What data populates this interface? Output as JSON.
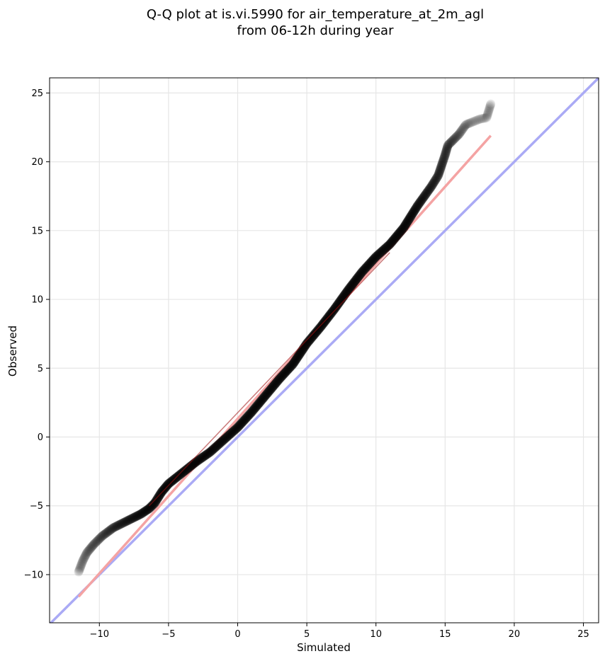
{
  "chart_data": {
    "type": "scatter",
    "title": "Q-Q plot at is.vi.5990 for air_temperature_at_2m_agl",
    "subtitle": "from 06-12h during year",
    "xlabel": "Simulated",
    "ylabel": "Observed",
    "xlim": [
      -13.6,
      26.1
    ],
    "ylim": [
      -13.5,
      26.1
    ],
    "xticks": [
      -10,
      -5,
      0,
      5,
      10,
      15,
      20,
      25
    ],
    "yticks": [
      -10,
      -5,
      0,
      5,
      10,
      15,
      20,
      25
    ],
    "xtick_labels": [
      "−10",
      "−5",
      "0",
      "5",
      "10",
      "15",
      "20",
      "25"
    ],
    "ytick_labels": [
      "−10",
      "−5",
      "0",
      "5",
      "10",
      "15",
      "20",
      "25"
    ],
    "grid": true,
    "quantile_curve": [
      [
        -11.5,
        -9.8
      ],
      [
        -11.2,
        -9.0
      ],
      [
        -10.9,
        -8.4
      ],
      [
        -10.4,
        -7.8
      ],
      [
        -9.8,
        -7.2
      ],
      [
        -9.0,
        -6.6
      ],
      [
        -8.0,
        -6.1
      ],
      [
        -7.0,
        -5.6
      ],
      [
        -6.4,
        -5.2
      ],
      [
        -6.0,
        -4.8
      ],
      [
        -5.5,
        -4.0
      ],
      [
        -5.0,
        -3.4
      ],
      [
        -4.0,
        -2.6
      ],
      [
        -3.0,
        -1.8
      ],
      [
        -2.0,
        -1.1
      ],
      [
        -1.0,
        -0.2
      ],
      [
        0.0,
        0.7
      ],
      [
        1.0,
        1.8
      ],
      [
        2.0,
        3.0
      ],
      [
        3.0,
        4.2
      ],
      [
        4.0,
        5.3
      ],
      [
        5.0,
        6.8
      ],
      [
        6.0,
        8.0
      ],
      [
        7.0,
        9.3
      ],
      [
        8.0,
        10.7
      ],
      [
        9.0,
        12.0
      ],
      [
        10.0,
        13.1
      ],
      [
        11.0,
        14.0
      ],
      [
        12.0,
        15.2
      ],
      [
        12.5,
        16.0
      ],
      [
        13.0,
        16.8
      ],
      [
        13.5,
        17.5
      ],
      [
        14.0,
        18.2
      ],
      [
        14.5,
        19.0
      ],
      [
        15.0,
        20.5
      ],
      [
        15.2,
        21.2
      ],
      [
        16.0,
        22.0
      ],
      [
        16.5,
        22.7
      ],
      [
        17.5,
        23.1
      ],
      [
        18.0,
        23.2
      ],
      [
        18.3,
        24.2
      ]
    ],
    "series": [
      {
        "type": "points",
        "style": "circles",
        "color": "#000000",
        "opacity": 0.35,
        "tail_opacity": 0.08
      },
      {
        "type": "line",
        "color": "#f4a3a3",
        "core_color": "#a01010",
        "from": [
          -11.5,
          -11.6
        ],
        "to": [
          18.3,
          21.9
        ]
      },
      {
        "type": "line",
        "color": "#aaaaf5",
        "from": [
          -13.6,
          -13.6
        ],
        "to": [
          26.1,
          26.1
        ]
      }
    ]
  }
}
